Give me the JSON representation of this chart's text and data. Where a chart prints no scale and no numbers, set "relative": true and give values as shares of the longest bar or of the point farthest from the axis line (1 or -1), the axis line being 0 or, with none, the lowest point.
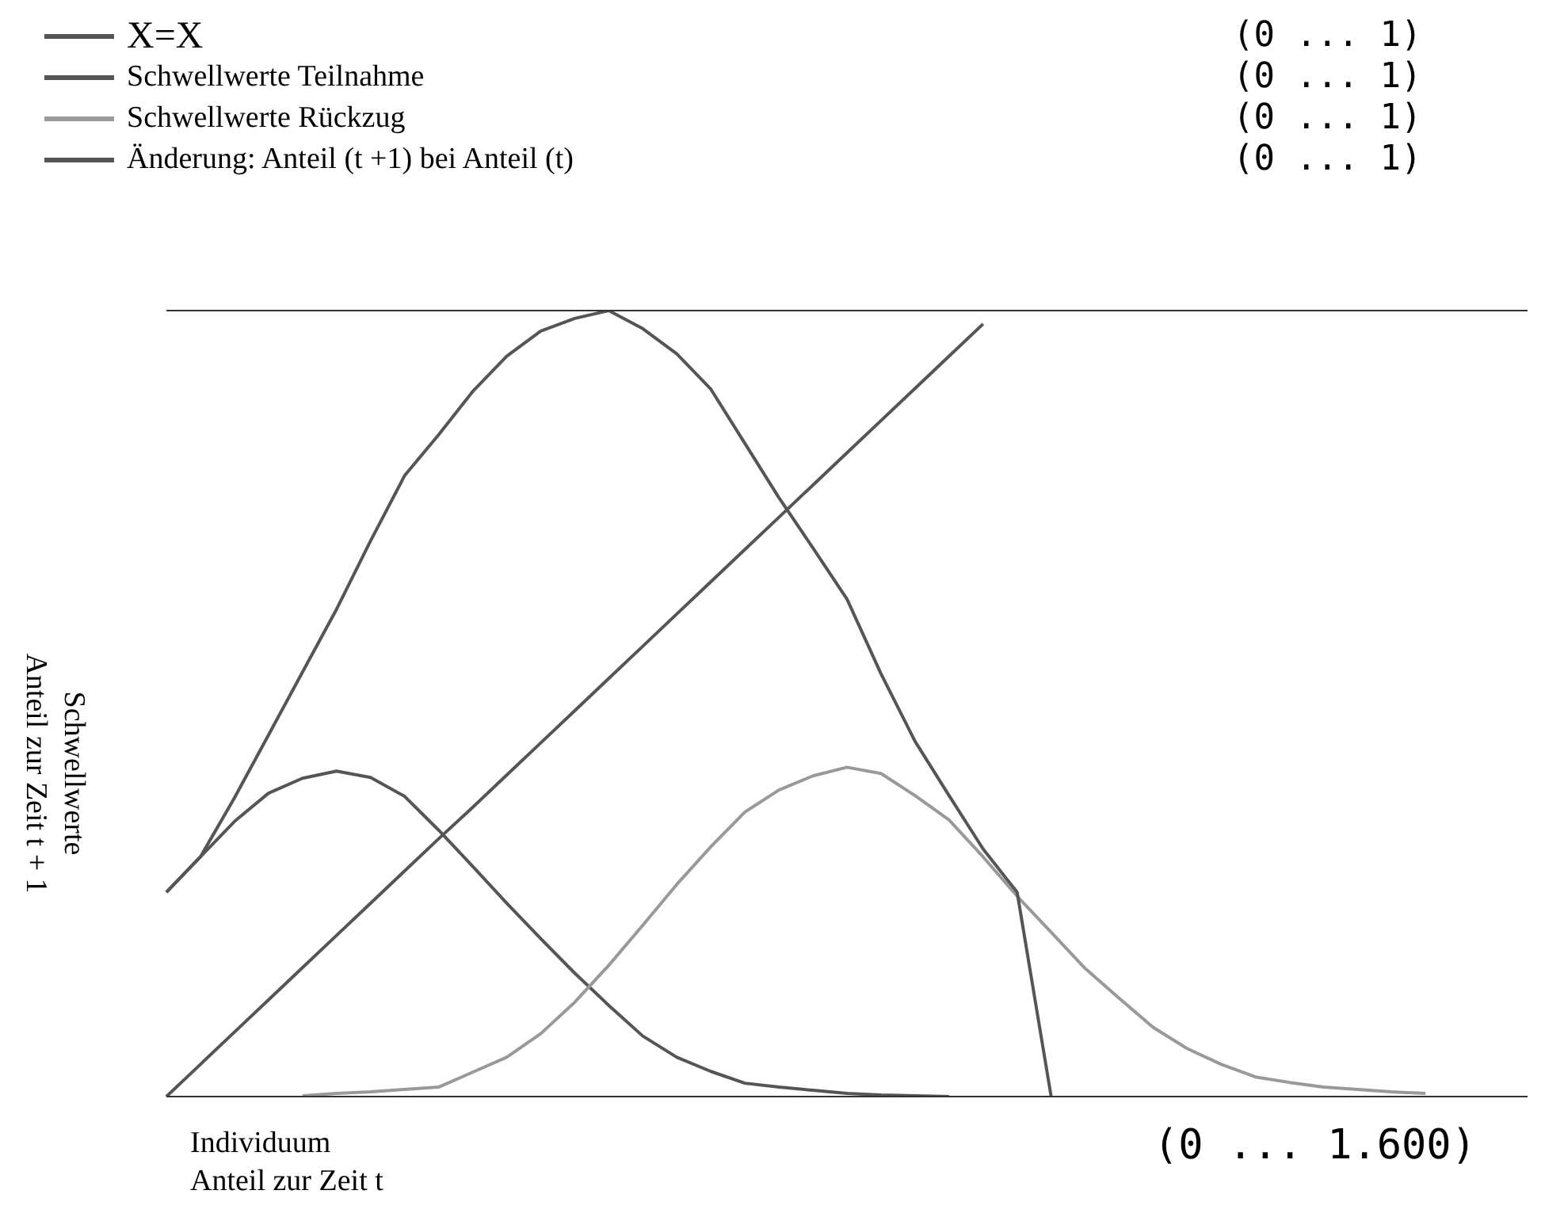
{
  "chart_data": {
    "type": "line",
    "relative": true,
    "xlabel": "Individuum\nAnteil zur Zeit t",
    "ylabel": "Schwellwerte\nAnteil zur Zeit t + 1",
    "categories": [
      null,
      null,
      null,
      null,
      null,
      null,
      null,
      null,
      null,
      null,
      null,
      null,
      null,
      null,
      null,
      null,
      null,
      null,
      null,
      null,
      null,
      null,
      null,
      null,
      null,
      null,
      null,
      null,
      null,
      null,
      null,
      null,
      null,
      null,
      null,
      null,
      null,
      null,
      null,
      null,
      null
    ],
    "legend": "top left",
    "marker": "none",
    "line_style": "solid",
    "annotations": [
      "(0 ... 1)",
      "(0 ... 1)",
      "(0 ... 1)",
      "(0 ... 1)",
      "(0 ... 1.600)"
    ],
    "series": [
      {
        "name": "X=X",
        "color": "#555555",
        "values": [
          0,
          0.041,
          0.082,
          0.123,
          0.164,
          0.205,
          0.246,
          0.287,
          0.328,
          0.368,
          0.409,
          0.45,
          0.491,
          0.532,
          0.573,
          0.614,
          0.655,
          0.696,
          0.737,
          0.778,
          0.819,
          0.86,
          0.901,
          0.942,
          0.983,
          null,
          null,
          null,
          null,
          null,
          null,
          null,
          null,
          null,
          null,
          null,
          null,
          null,
          null,
          null,
          null
        ]
      },
      {
        "name": "Schwellwerte Teilnahme",
        "color": "#555555",
        "values": [
          0.26,
          0.305,
          0.35,
          0.386,
          0.405,
          0.414,
          0.406,
          0.382,
          0.339,
          0.293,
          0.246,
          0.201,
          0.157,
          0.116,
          0.077,
          0.05,
          0.032,
          0.017,
          0.012,
          0.008,
          0.004,
          0.002,
          0.001,
          0,
          null,
          null,
          null,
          null,
          null,
          null,
          null,
          null,
          null,
          null,
          null,
          null,
          null,
          null,
          null,
          null,
          null
        ]
      },
      {
        "name": "Schwellwerte Rückzug",
        "color": "#999999",
        "values": [
          null,
          null,
          null,
          null,
          0.001,
          0.004,
          0.006,
          0.009,
          0.012,
          0.031,
          0.05,
          0.08,
          0.12,
          0.167,
          0.218,
          0.27,
          0.318,
          0.362,
          0.39,
          0.408,
          0.419,
          0.411,
          0.383,
          0.352,
          0.305,
          0.255,
          0.209,
          0.163,
          0.125,
          0.088,
          0.061,
          0.041,
          0.025,
          0.018,
          0.012,
          0.009,
          0.006,
          0.004,
          null,
          null,
          null
        ]
      },
      {
        "name": "Änderung: Anteil (t +1)  bei Anteil (t)",
        "color": "#555555",
        "values": [
          0.26,
          0.305,
          0.38,
          0.46,
          0.54,
          0.62,
          0.707,
          0.79,
          0.842,
          0.897,
          0.942,
          0.974,
          0.99,
          1,
          0.977,
          0.945,
          0.9,
          0.831,
          0.762,
          0.698,
          0.633,
          0.538,
          0.452,
          0.383,
          0.315,
          0.26,
          0,
          null,
          null,
          null,
          null,
          null,
          null,
          null,
          null,
          null,
          null,
          null,
          null,
          null,
          null
        ]
      }
    ]
  }
}
